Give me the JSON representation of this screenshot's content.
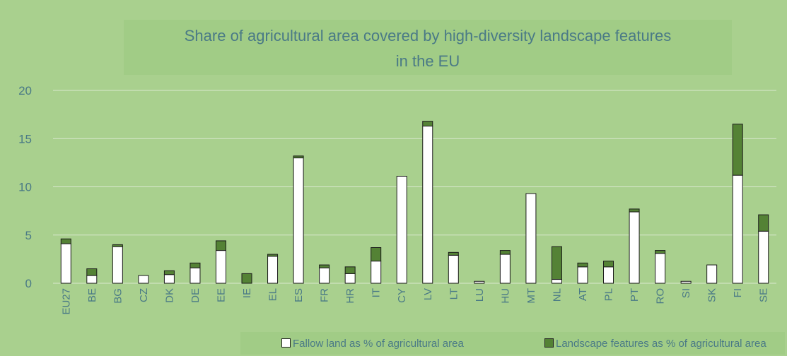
{
  "chart_data": {
    "type": "bar",
    "stacked": true,
    "title": "Share of agricultural area covered by high-diversity landscape features in the EU",
    "title_lines": [
      "Share of agricultural area covered by high-diversity landscape features",
      "in the EU"
    ],
    "ylim": [
      0,
      20
    ],
    "yticks": [
      "0",
      "5",
      "10",
      "15",
      "20"
    ],
    "grid": true,
    "legend_position": "bottom",
    "categories": [
      "EU27",
      "BE",
      "BG",
      "CZ",
      "DK",
      "DE",
      "EE",
      "IE",
      "EL",
      "ES",
      "FR",
      "HR",
      "IT",
      "CY",
      "LV",
      "LT",
      "LU",
      "HU",
      "MT",
      "NL",
      "AT",
      "PL",
      "PT",
      "RO",
      "SI",
      "SK",
      "FI",
      "SE"
    ],
    "series": [
      {
        "name": "Fallow land as % of agricultural area",
        "color": "#ffffff",
        "values": [
          4.1,
          0.8,
          3.8,
          0.8,
          0.9,
          1.6,
          3.4,
          0.0,
          2.8,
          13.0,
          1.6,
          1.0,
          2.3,
          11.1,
          16.3,
          2.9,
          0.2,
          3.0,
          9.3,
          0.4,
          1.7,
          1.7,
          7.4,
          3.1,
          0.2,
          1.9,
          11.2,
          5.4
        ]
      },
      {
        "name": "Landscape features as % of agricultural area",
        "color": "#548235",
        "values": [
          0.5,
          0.7,
          0.2,
          0.0,
          0.4,
          0.5,
          1.0,
          1.0,
          0.2,
          0.2,
          0.3,
          0.7,
          1.4,
          0.0,
          0.5,
          0.3,
          0.0,
          0.4,
          0.0,
          3.4,
          0.4,
          0.6,
          0.3,
          0.3,
          0.0,
          0.0,
          5.3,
          1.7
        ]
      }
    ]
  }
}
